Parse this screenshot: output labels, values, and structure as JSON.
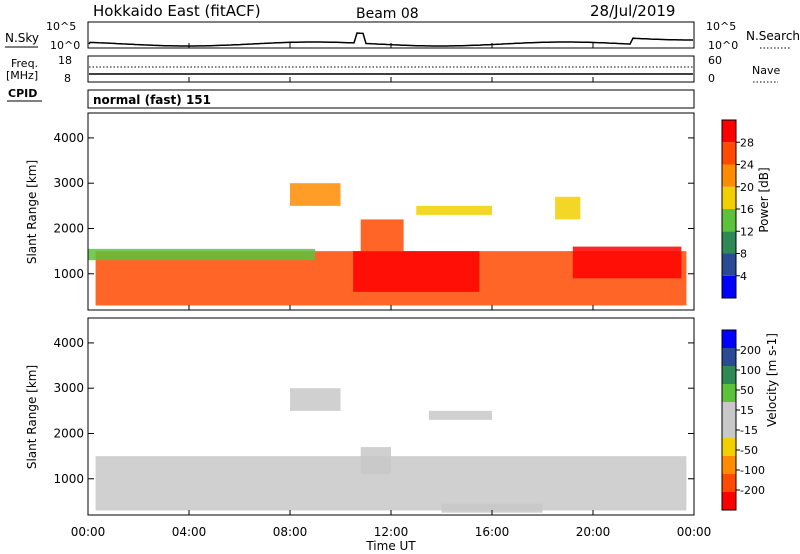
{
  "header": {
    "station": "Hokkaido East (fitACF)",
    "beam": "Beam 08",
    "date": "28/Jul/2019"
  },
  "top_panels": {
    "nsky_label": "N.Sky",
    "nsearch_label": "N.Search",
    "noise_ticks_left": [
      "10^5",
      "10^0"
    ],
    "noise_ticks_right": [
      "10^5",
      "10^0"
    ],
    "freq_label": "Freq.",
    "freq_unit": "[MHz]",
    "freq_ticks": [
      "18",
      "8"
    ],
    "nave_label": "Nave",
    "nave_ticks": [
      "60",
      "0"
    ],
    "cpid_label": "CPID",
    "cpid_value": "normal (fast) 151"
  },
  "time_axis": {
    "label": "Time UT",
    "ticks": [
      "00:00",
      "04:00",
      "08:00",
      "12:00",
      "16:00",
      "20:00",
      "00:00"
    ]
  },
  "colors": {
    "power_scale": [
      "#0000ff",
      "#2a4a96",
      "#2e8a55",
      "#5cc23a",
      "#f2d000",
      "#ff8c00",
      "#ff4a00",
      "#ff0000"
    ],
    "velocity_scale": [
      "#ff0000",
      "#ff4a00",
      "#ff8c00",
      "#f2d000",
      "#c8c8c8",
      "#c8c8c8",
      "#5cc23a",
      "#2e8a55",
      "#2a4a96",
      "#0000ff"
    ]
  },
  "chart_data": [
    {
      "type": "heatmap",
      "title": "",
      "xlabel": "",
      "ylabel": "Slant Range [km]",
      "xlim": [
        0,
        24
      ],
      "ylim": [
        200,
        4550
      ],
      "yticks": [
        "1000",
        "2000",
        "3000",
        "4000"
      ],
      "colorbar": {
        "label": "Power [dB]",
        "ticks": [
          "4",
          "8",
          "12",
          "16",
          "20",
          "24",
          "28"
        ],
        "range": [
          0,
          32
        ]
      },
      "regions": [
        {
          "t0": 0.3,
          "t1": 23.7,
          "r0": 300,
          "r1": 1500,
          "value": 26
        },
        {
          "t0": 0.0,
          "t1": 9.0,
          "r0": 1300,
          "r1": 1550,
          "value": 14
        },
        {
          "t0": 10.5,
          "t1": 15.5,
          "r0": 600,
          "r1": 1500,
          "value": 30
        },
        {
          "t0": 10.8,
          "t1": 12.5,
          "r0": 1500,
          "r1": 2200,
          "value": 24
        },
        {
          "t0": 8.0,
          "t1": 10.0,
          "r0": 2500,
          "r1": 3000,
          "value": 22
        },
        {
          "t0": 13.0,
          "t1": 16.0,
          "r0": 2300,
          "r1": 2500,
          "value": 16
        },
        {
          "t0": 18.5,
          "t1": 19.5,
          "r0": 2200,
          "r1": 2700,
          "value": 16
        },
        {
          "t0": 19.2,
          "t1": 23.5,
          "r0": 900,
          "r1": 1600,
          "value": 28
        }
      ]
    },
    {
      "type": "heatmap",
      "title": "",
      "xlabel": "Time UT",
      "ylabel": "Slant Range [km]",
      "xlim": [
        0,
        24
      ],
      "ylim": [
        200,
        4550
      ],
      "yticks": [
        "1000",
        "2000",
        "3000",
        "4000"
      ],
      "colorbar": {
        "label": "Velocity [m s-1]",
        "ticks": [
          "200",
          "100",
          "50",
          "15",
          "-15",
          "-50",
          "-100",
          "-200"
        ],
        "range": [
          -250,
          250
        ]
      },
      "regions": [
        {
          "t0": 0.3,
          "t1": 23.7,
          "r0": 300,
          "r1": 1500,
          "value": 0
        },
        {
          "t0": 10.8,
          "t1": 12.0,
          "r0": 1100,
          "r1": 1700,
          "value": 40
        },
        {
          "t0": 14.0,
          "t1": 18.0,
          "r0": 250,
          "r1": 450,
          "value": -40
        },
        {
          "t0": 8.0,
          "t1": 10.0,
          "r0": 2500,
          "r1": 3000,
          "value": 0
        },
        {
          "t0": 13.5,
          "t1": 16.0,
          "r0": 2300,
          "r1": 2500,
          "value": 30
        }
      ]
    }
  ]
}
